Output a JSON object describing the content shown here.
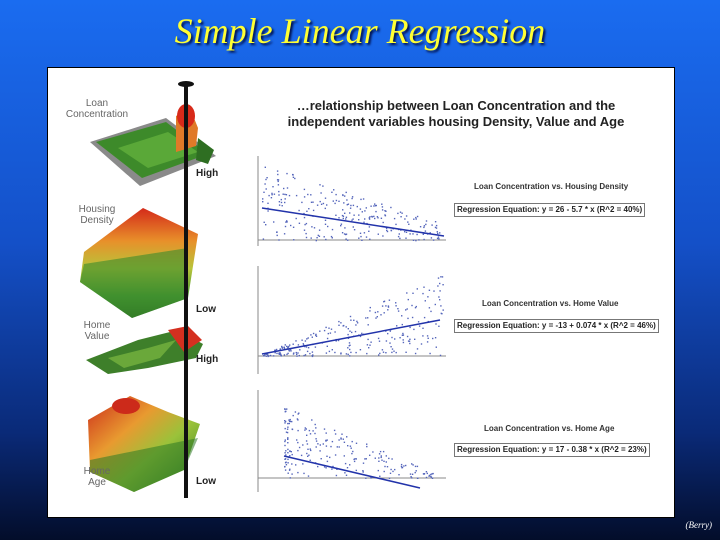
{
  "slide": {
    "title": "Simple Linear Regression",
    "credit": "(Berry)"
  },
  "figure": {
    "heading_line1": "…relationship between Loan Concentration and the",
    "heading_line2": "independent variables housing Density, Value and Age",
    "maps": [
      {
        "label_line1": "Loan",
        "label_line2": "Concentration"
      },
      {
        "label_line1": "Housing",
        "label_line2": "Density"
      },
      {
        "label_line1": "Home",
        "label_line2": "Value"
      },
      {
        "label_line1": "Home",
        "label_line2": "Age"
      }
    ],
    "pole_labels": {
      "high_1": "High",
      "low_1": "Low",
      "high_2": "High",
      "low_2": "Low"
    },
    "charts": [
      {
        "title": "Loan Concentration vs. Housing Density",
        "equation": "Regression Equation: y = 26 - 5.7 * x (R^2 = 40%)"
      },
      {
        "title": "Loan Concentration vs. Home Value",
        "equation": "Regression Equation: y = -13 + 0.074 * x (R^2 = 46%)"
      },
      {
        "title": "Loan Concentration vs. Home Age",
        "equation": "Regression Equation: y = 17 - 0.38 * x (R^2 = 23%)"
      }
    ]
  },
  "colors": {
    "title": "#ffff33",
    "regression_line": "#2233aa",
    "scatter_points": "#5566bb"
  }
}
